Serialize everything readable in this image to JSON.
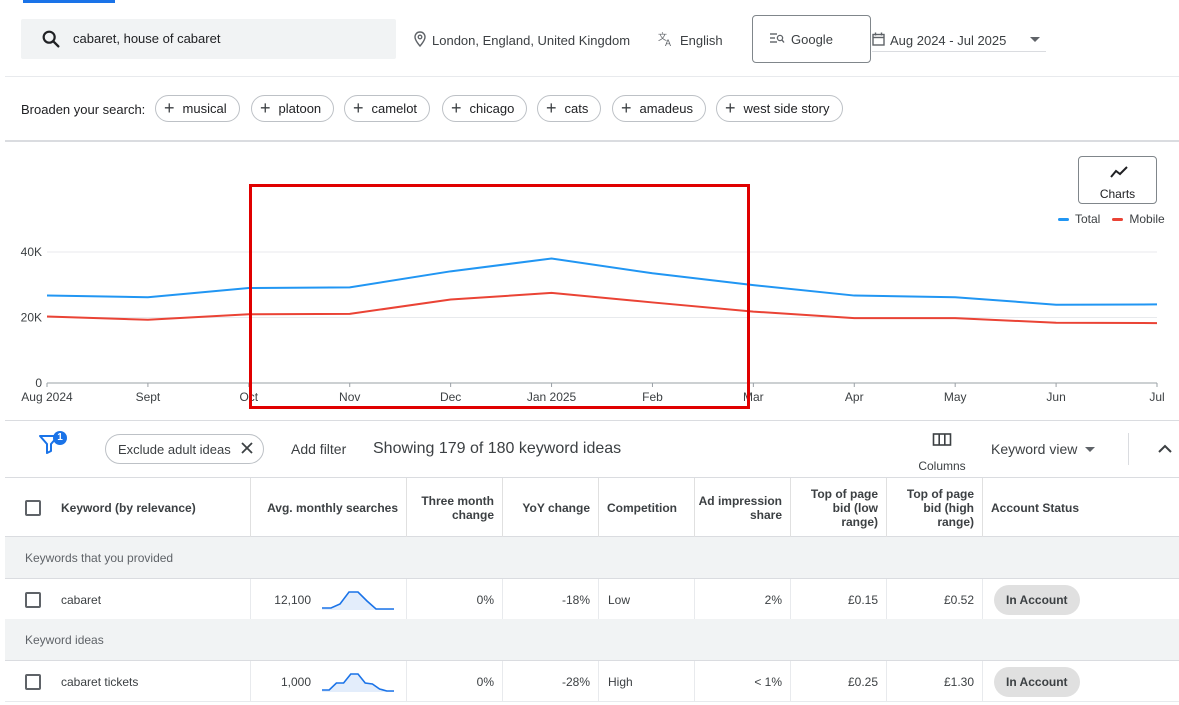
{
  "search": {
    "query": "cabaret, house of cabaret"
  },
  "location": {
    "label": "London, England, United Kingdom"
  },
  "language": {
    "label": "English"
  },
  "network": {
    "label": "Google"
  },
  "date_range": {
    "label": "Aug 2024 - Jul 2025"
  },
  "broaden": {
    "label": "Broaden your search:",
    "chips": [
      "musical",
      "platoon",
      "camelot",
      "chicago",
      "cats",
      "amadeus",
      "west side story"
    ]
  },
  "charts_button": {
    "label": "Charts"
  },
  "legend": [
    {
      "name": "Total",
      "color": "#2196f3"
    },
    {
      "name": "Mobile",
      "color": "#ea4335"
    }
  ],
  "chart_data": {
    "type": "line",
    "x": [
      "Aug 2024",
      "Sept",
      "Oct",
      "Nov",
      "Dec",
      "Jan 2025",
      "Feb",
      "Mar",
      "Apr",
      "May",
      "Jun",
      "Jul"
    ],
    "y_ticks": [
      "0",
      "20K",
      "40K"
    ],
    "ylim": [
      0,
      50000
    ],
    "grid": true,
    "legend_position": "top-right",
    "series": [
      {
        "name": "Total",
        "color": "#2196f3",
        "values": [
          26700,
          26200,
          29000,
          29200,
          34100,
          38000,
          33500,
          29900,
          26700,
          26200,
          23900,
          24000
        ]
      },
      {
        "name": "Mobile",
        "color": "#ea4335",
        "values": [
          20300,
          19300,
          21000,
          21100,
          25500,
          27500,
          24600,
          21800,
          19800,
          19800,
          18400,
          18300
        ]
      }
    ]
  },
  "filters": {
    "badge_count": "1",
    "exclude_chip": "Exclude adult ideas",
    "add_filter": "Add filter",
    "showing": "Showing 179 of 180 keyword ideas",
    "columns_label": "Columns",
    "view_label": "Keyword view"
  },
  "table": {
    "headers": {
      "keyword": "Keyword (by relevance)",
      "avg": "Avg. monthly searches",
      "three_month_1": "Three month",
      "three_month_2": "change",
      "yoy": "YoY change",
      "competition": "Competition",
      "ad_share_1": "Ad impression",
      "ad_share_2": "share",
      "low_1": "Top of page",
      "low_2": "bid (low",
      "low_3": "range)",
      "high_1": "Top of page",
      "high_2": "bid (high",
      "high_3": "range)",
      "status": "Account Status"
    },
    "groups": [
      {
        "label": "Keywords that you provided",
        "rows": [
          {
            "keyword": "cabaret",
            "avg": "12,100",
            "trend": [
              0.1,
              0.1,
              0.3,
              0.9,
              0.9,
              0.45,
              0.05,
              0.05,
              0.05
            ],
            "three_month": "0%",
            "yoy": "-18%",
            "competition": "Low",
            "ad_share": "2%",
            "bid_low": "£0.15",
            "bid_high": "£0.52",
            "status": "In Account"
          }
        ]
      },
      {
        "label": "Keyword ideas",
        "rows": [
          {
            "keyword": "cabaret tickets",
            "avg": "1,000",
            "trend": [
              0.1,
              0.1,
              0.45,
              0.45,
              0.9,
              0.9,
              0.45,
              0.4,
              0.15,
              0.05,
              0.05
            ],
            "three_month": "0%",
            "yoy": "-28%",
            "competition": "High",
            "ad_share": "< 1%",
            "bid_low": "£0.25",
            "bid_high": "£1.30",
            "status": "In Account"
          }
        ]
      }
    ]
  }
}
